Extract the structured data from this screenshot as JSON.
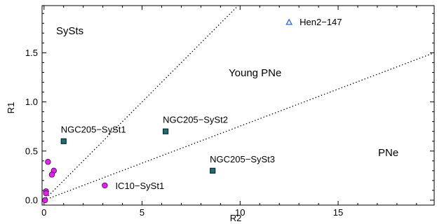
{
  "chart_data": {
    "type": "scatter",
    "title": "",
    "xlabel": "R2",
    "ylabel": "R1",
    "xlim": [
      -0.1,
      19.9
    ],
    "ylim": [
      -0.05,
      1.98
    ],
    "x_ticks": [
      0,
      5,
      10,
      15
    ],
    "y_ticks": [
      0.0,
      0.5,
      1.0,
      1.5
    ],
    "x_tick_labels": [
      "0",
      "5",
      "10",
      "15"
    ],
    "y_tick_labels": [
      "0.0",
      "0.5",
      "1.0",
      "1.5"
    ],
    "grid": false,
    "legend": "none",
    "colors": {
      "magenta": "#e81ef0",
      "teal_square": "#1a6f6f",
      "teal_border": "#0a2a3a",
      "blue_triangle": "#2a62d8"
    },
    "divider_lines": [
      {
        "style": "dotted",
        "points": [
          [
            0,
            0
          ],
          [
            9.9,
            1.98
          ]
        ]
      },
      {
        "style": "dotted",
        "points": [
          [
            0,
            0
          ],
          [
            19.9,
            1.5
          ]
        ]
      }
    ],
    "region_labels": [
      "SySts",
      "Young PNe",
      "PNe"
    ],
    "series": [
      {
        "marker": "circle",
        "color": "#e81ef0",
        "points": [
          {
            "x": 0.2,
            "y": 0.39,
            "label": ""
          },
          {
            "x": 0.5,
            "y": 0.3,
            "label": ""
          },
          {
            "x": 0.4,
            "y": 0.26,
            "label": ""
          },
          {
            "x": 0.1,
            "y": 0.09,
            "label": ""
          },
          {
            "x": 0.1,
            "y": 0.07,
            "label": ""
          },
          {
            "x": 0.05,
            "y": 0.0,
            "label": ""
          },
          {
            "x": 3.1,
            "y": 0.15,
            "label": "IC10−SySt1"
          }
        ]
      },
      {
        "marker": "square",
        "color": "#1a6f6f",
        "points": [
          {
            "x": 1.0,
            "y": 0.6,
            "label": "NGC205−SySt1"
          },
          {
            "x": 6.2,
            "y": 0.7,
            "label": "NGC205−SySt2"
          },
          {
            "x": 8.6,
            "y": 0.3,
            "label": "NGC205−SySt3"
          }
        ]
      },
      {
        "marker": "triangle",
        "color": "#2a62d8",
        "points": [
          {
            "x": 12.5,
            "y": 1.81,
            "label": "Hen2−147"
          }
        ]
      }
    ]
  }
}
